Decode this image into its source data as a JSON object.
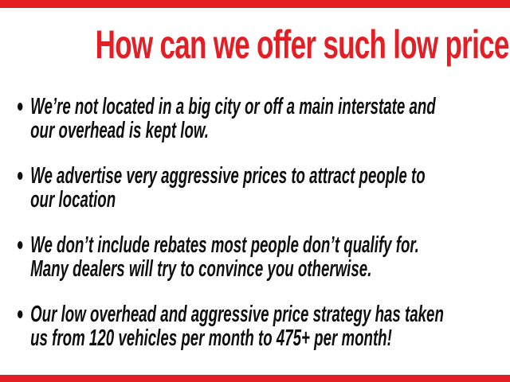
{
  "page": {
    "background_color": "#ffffff",
    "accent_red": "#e31e25",
    "text_black": "#0f0f0f"
  },
  "decor": {
    "top_bar_color": "#e31e25",
    "bottom_bar_color": "#e31e25"
  },
  "heading": {
    "text": "How can we offer such low prices?",
    "color": "#e31e25"
  },
  "bullets": [
    {
      "marker": "bullet-dot",
      "lines": [
        "We’re not located in a big city or off a main interstate and",
        "our overhead is kept low."
      ]
    },
    {
      "marker": "bullet-dot",
      "lines": [
        "We advertise very aggressive prices to attract people to",
        "our location"
      ]
    },
    {
      "marker": "bullet-dot",
      "lines": [
        "We don’t include rebates most people don’t qualify for.",
        "Many dealers will try to convince you otherwise."
      ]
    },
    {
      "marker": "bullet-dot",
      "lines": [
        "Our low overhead and aggressive price strategy has taken",
        "us from 120 vehicles per month to 475+ per month!"
      ]
    }
  ]
}
